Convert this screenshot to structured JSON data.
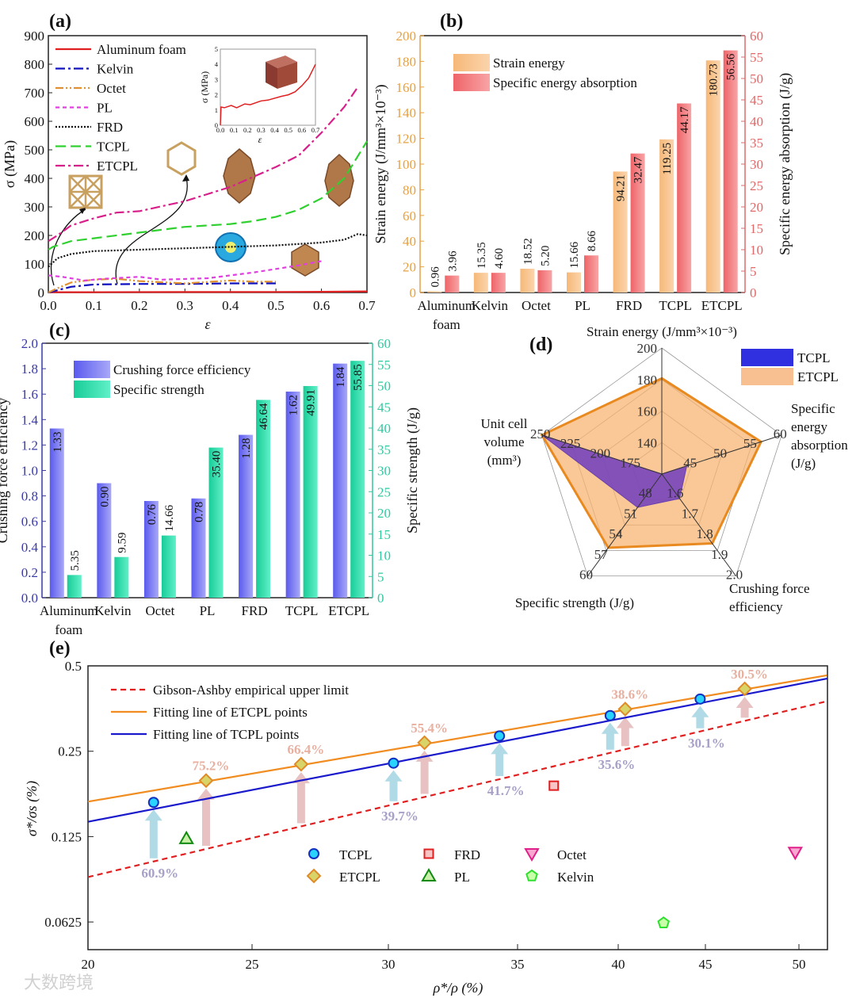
{
  "panels": {
    "a": "(a)",
    "b": "(b)",
    "c": "(c)",
    "d": "(d)",
    "e": "(e)"
  },
  "watermark": "大数跨境",
  "colors": {
    "strain_energy": "#f0b070",
    "sea": "#f07070",
    "cfe": "#6a6af0",
    "specific_strength": "#20d0a0",
    "tcpl": "#2020e0",
    "etcpl": "#e88a20",
    "gibson": "#e02020"
  },
  "chart_data": [
    {
      "id": "a",
      "type": "line",
      "xlabel": "ε",
      "ylabel": "σ (MPa)",
      "xlim": [
        0,
        0.7
      ],
      "ylim": [
        0,
        900
      ],
      "xticks": [
        "0.0",
        "0.1",
        "0.2",
        "0.3",
        "0.4",
        "0.5",
        "0.6",
        "0.7"
      ],
      "yticks": [
        "0",
        "100",
        "200",
        "300",
        "400",
        "500",
        "600",
        "700",
        "800",
        "900"
      ],
      "legend_position": "top-left",
      "series": [
        {
          "name": "Aluminum foam",
          "color": "#e02020",
          "style": "solid",
          "points": [
            [
              0,
              0
            ],
            [
              0.01,
              1.2
            ],
            [
              0.1,
              1.2
            ],
            [
              0.3,
              1.6
            ],
            [
              0.5,
              2
            ],
            [
              0.6,
              2.6
            ],
            [
              0.7,
              4
            ]
          ]
        },
        {
          "name": "Kelvin",
          "color": "#1010c0",
          "style": "dash-dot",
          "points": [
            [
              0,
              0
            ],
            [
              0.05,
              20
            ],
            [
              0.1,
              28
            ],
            [
              0.2,
              30
            ],
            [
              0.3,
              30
            ],
            [
              0.4,
              32
            ],
            [
              0.5,
              32
            ]
          ]
        },
        {
          "name": "Octet",
          "color": "#e09030",
          "style": "dash-dot-dot",
          "points": [
            [
              0,
              0
            ],
            [
              0.02,
              15
            ],
            [
              0.05,
              35
            ],
            [
              0.1,
              45
            ],
            [
              0.15,
              48
            ],
            [
              0.2,
              40
            ],
            [
              0.3,
              32
            ],
            [
              0.4,
              42
            ],
            [
              0.45,
              38
            ],
            [
              0.5,
              38
            ]
          ]
        },
        {
          "name": "PL",
          "color": "#e040e0",
          "style": "dash",
          "points": [
            [
              0,
              60
            ],
            [
              0.03,
              55
            ],
            [
              0.08,
              42
            ],
            [
              0.12,
              48
            ],
            [
              0.2,
              55
            ],
            [
              0.25,
              45
            ],
            [
              0.35,
              50
            ],
            [
              0.45,
              70
            ],
            [
              0.55,
              95
            ],
            [
              0.6,
              110
            ]
          ]
        },
        {
          "name": "FRD",
          "color": "#111111",
          "style": "dot",
          "points": [
            [
              0,
              90
            ],
            [
              0.02,
              120
            ],
            [
              0.05,
              135
            ],
            [
              0.1,
              145
            ],
            [
              0.2,
              150
            ],
            [
              0.3,
              155
            ],
            [
              0.4,
              160
            ],
            [
              0.5,
              165
            ],
            [
              0.6,
              175
            ],
            [
              0.65,
              185
            ],
            [
              0.68,
              205
            ],
            [
              0.7,
              200
            ]
          ]
        },
        {
          "name": "TCPL",
          "color": "#30d030",
          "style": "long-dash",
          "points": [
            [
              0,
              150
            ],
            [
              0.01,
              160
            ],
            [
              0.05,
              180
            ],
            [
              0.1,
              190
            ],
            [
              0.2,
              210
            ],
            [
              0.3,
              230
            ],
            [
              0.4,
              240
            ],
            [
              0.45,
              250
            ],
            [
              0.5,
              265
            ],
            [
              0.55,
              290
            ],
            [
              0.6,
              330
            ],
            [
              0.65,
              400
            ],
            [
              0.7,
              530
            ]
          ]
        },
        {
          "name": "ETCPL",
          "color": "#d8208a",
          "style": "dash-dot",
          "points": [
            [
              0,
              180
            ],
            [
              0.02,
              200
            ],
            [
              0.05,
              235
            ],
            [
              0.1,
              260
            ],
            [
              0.15,
              280
            ],
            [
              0.2,
              285
            ],
            [
              0.3,
              320
            ],
            [
              0.4,
              370
            ],
            [
              0.5,
              440
            ],
            [
              0.55,
              480
            ],
            [
              0.6,
              560
            ],
            [
              0.65,
              650
            ],
            [
              0.68,
              720
            ]
          ]
        }
      ],
      "inset": {
        "xlabel": "ε",
        "ylabel": "σ (MPa)",
        "xlim": [
          0,
          0.7
        ],
        "ylim": [
          0,
          5
        ],
        "xticks": [
          "0.0",
          "0.1",
          "0.2",
          "0.3",
          "0.4",
          "0.5",
          "0.6",
          "0.7"
        ],
        "yticks": [
          "0",
          "1",
          "2",
          "3",
          "4",
          "5"
        ],
        "series": {
          "name": "Aluminum foam",
          "color": "#e02020",
          "points": [
            [
              0,
              0
            ],
            [
              0.005,
              1.2
            ],
            [
              0.03,
              1.15
            ],
            [
              0.08,
              1.3
            ],
            [
              0.12,
              1.15
            ],
            [
              0.18,
              1.4
            ],
            [
              0.22,
              1.35
            ],
            [
              0.3,
              1.6
            ],
            [
              0.35,
              1.65
            ],
            [
              0.45,
              1.9
            ],
            [
              0.5,
              2.0
            ],
            [
              0.55,
              2.2
            ],
            [
              0.6,
              2.6
            ],
            [
              0.65,
              3.1
            ],
            [
              0.7,
              4.0
            ]
          ]
        }
      }
    },
    {
      "id": "b",
      "type": "bar",
      "categories": [
        "Aluminum foam",
        "Kelvin",
        "Octet",
        "PL",
        "FRD",
        "TCPL",
        "ETCPL"
      ],
      "ylabel": "Strain energy (J/mm³×10⁻³)",
      "y2label": "Specific energy absorption (J/g)",
      "ylim": [
        0,
        200
      ],
      "y2lim": [
        0,
        60
      ],
      "yticks": [
        "0",
        "20",
        "40",
        "60",
        "80",
        "100",
        "120",
        "140",
        "160",
        "180",
        "200"
      ],
      "y2ticks": [
        "0",
        "5",
        "10",
        "15",
        "20",
        "25",
        "30",
        "35",
        "40",
        "45",
        "50",
        "55",
        "60"
      ],
      "legend_position": "top-left",
      "series": [
        {
          "name": "Strain energy",
          "axis": "left",
          "values": [
            0.96,
            15.35,
            18.52,
            15.66,
            94.21,
            119.25,
            180.73
          ],
          "labels": [
            "0.96",
            "15.35",
            "18.52",
            "15.66",
            "94.21",
            "119.25",
            "180.73"
          ]
        },
        {
          "name": "Specific energy absorption",
          "axis": "right",
          "values": [
            3.96,
            4.6,
            5.2,
            8.66,
            32.47,
            44.17,
            56.56
          ],
          "labels": [
            "3.96",
            "4.60",
            "5.20",
            "8.66",
            "32.47",
            "44.17",
            "56.56"
          ]
        }
      ]
    },
    {
      "id": "c",
      "type": "bar",
      "categories": [
        "Aluminum foam",
        "Kelvin",
        "Octet",
        "PL",
        "FRD",
        "TCPL",
        "ETCPL"
      ],
      "ylabel": "Crushing force efficiency",
      "y2label": "Specific strength (J/g)",
      "ylim": [
        0,
        2.0
      ],
      "y2lim": [
        0,
        60
      ],
      "yticks": [
        "0.0",
        "0.2",
        "0.4",
        "0.6",
        "0.8",
        "1.0",
        "1.2",
        "1.4",
        "1.6",
        "1.8",
        "2.0"
      ],
      "y2ticks": [
        "0",
        "5",
        "10",
        "15",
        "20",
        "25",
        "30",
        "35",
        "40",
        "45",
        "50",
        "55",
        "60"
      ],
      "legend_position": "top-left",
      "series": [
        {
          "name": "Crushing force efficiency",
          "axis": "left",
          "values": [
            1.33,
            0.9,
            0.76,
            0.78,
            1.28,
            1.62,
            1.84
          ],
          "labels": [
            "1.33",
            "0.90",
            "0.76",
            "0.78",
            "1.28",
            "1.62",
            "1.84"
          ]
        },
        {
          "name": "Specific strength",
          "axis": "right",
          "values": [
            5.35,
            9.59,
            14.66,
            35.4,
            46.64,
            49.91,
            55.85
          ],
          "labels": [
            "5.35",
            "9.59",
            "14.66",
            "35.40",
            "46.64",
            "49.91",
            "55.85"
          ]
        }
      ]
    },
    {
      "id": "d",
      "type": "radar",
      "legend_position": "top-right",
      "axes": [
        {
          "name": [
            "Strain energy (J/mm³×10⁻³)"
          ],
          "range": [
            120,
            200
          ],
          "ticks": [
            "140",
            "160",
            "180",
            "200"
          ]
        },
        {
          "name": [
            "Specific",
            "energy",
            "absorption",
            "(J/g)"
          ],
          "range": [
            40,
            60
          ],
          "ticks": [
            "45",
            "50",
            "55",
            "60"
          ]
        },
        {
          "name": [
            "Crushing force",
            "efficiency"
          ],
          "range": [
            1.5,
            2.0
          ],
          "ticks": [
            "1.6",
            "1.7",
            "1.8",
            "1.9",
            "2.0"
          ]
        },
        {
          "name": [
            "Specific strength (J/g)"
          ],
          "range": [
            45,
            60
          ],
          "ticks": [
            "48",
            "51",
            "54",
            "57",
            "60"
          ]
        },
        {
          "name": [
            "Unit cell",
            "volume",
            "(mm³)"
          ],
          "range": [
            150,
            250
          ],
          "ticks": [
            "175",
            "200",
            "225",
            "250"
          ]
        }
      ],
      "series": [
        {
          "name": "ETCPL",
          "values": [
            180.73,
            56.56,
            1.84,
            55.85,
            250
          ]
        },
        {
          "name": "TCPL",
          "values": [
            119.25,
            44.17,
            1.62,
            49.91,
            250
          ]
        }
      ]
    },
    {
      "id": "e",
      "type": "scatter",
      "xlabel": "ρ*/ρ (%)",
      "ylabel": "σ*/σs (%)",
      "xscale": "log",
      "yscale": "log",
      "xlim": [
        20,
        51.5
      ],
      "ylim": [
        0.053,
        0.5
      ],
      "xticks": [
        "20",
        "25",
        "30",
        "35",
        "40",
        "45",
        "50"
      ],
      "yticks": [
        "0.5",
        "0.25",
        "0.125",
        "0.0625"
      ],
      "lines": [
        {
          "name": "Gibson-Ashby empirical upper limit",
          "color": "#e02020",
          "style": "dash",
          "x": [
            20,
            51.5
          ],
          "y": [
            0.09,
            0.375
          ]
        },
        {
          "name": "Fitting line of ETCPL points",
          "color": "#f08c20",
          "style": "solid",
          "x": [
            20,
            51.5
          ],
          "y": [
            0.166,
            0.463
          ]
        },
        {
          "name": "Fitting line of TCPL points",
          "color": "#1a1acc",
          "style": "solid",
          "x": [
            20,
            51.5
          ],
          "y": [
            0.141,
            0.451
          ]
        }
      ],
      "series": [
        {
          "name": "TCPL",
          "marker": "circle",
          "x": [
            22.0,
            30.2,
            34.3,
            39.6,
            44.7
          ],
          "y": [
            0.165,
            0.227,
            0.283,
            0.334,
            0.382
          ],
          "improvement": [
            "60.9%",
            "39.7%",
            "41.7%",
            "35.6%",
            "30.1%"
          ]
        },
        {
          "name": "ETCPL",
          "marker": "diamond",
          "x": [
            23.6,
            26.8,
            31.4,
            40.4,
            47.1
          ],
          "y": [
            0.197,
            0.225,
            0.268,
            0.352,
            0.415
          ],
          "improvement": [
            "75.2%",
            "66.4%",
            "55.4%",
            "38.6%",
            "30.5%"
          ]
        },
        {
          "name": "FRD",
          "marker": "square",
          "x": [
            36.8
          ],
          "y": [
            0.189
          ]
        },
        {
          "name": "PL",
          "marker": "triangle-up",
          "x": [
            23.0
          ],
          "y": [
            0.123
          ]
        },
        {
          "name": "Octet",
          "marker": "triangle-down",
          "x": [
            49.8
          ],
          "y": [
            0.11
          ]
        },
        {
          "name": "Kelvin",
          "marker": "pentagon",
          "x": [
            42.6
          ],
          "y": [
            0.062
          ]
        }
      ]
    }
  ]
}
